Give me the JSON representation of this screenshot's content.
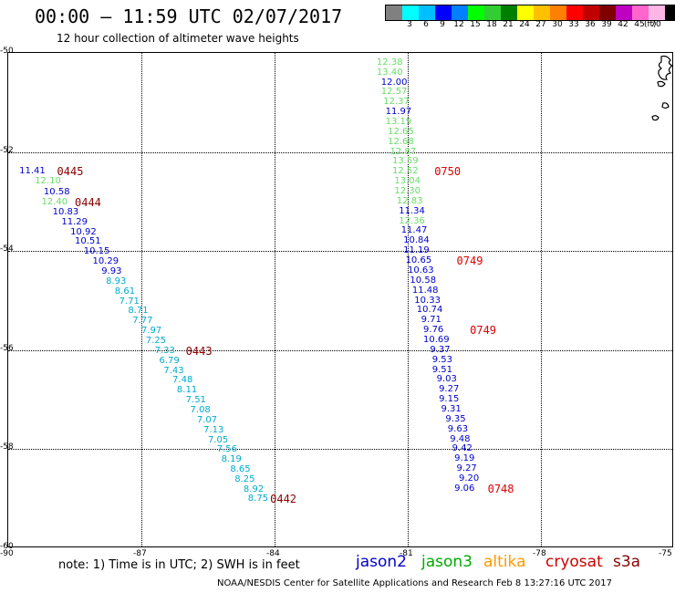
{
  "header": {
    "title": "00:00 – 11:59 UTC 02/07/2017",
    "subtitle": "12 hour collection of altimeter wave heights"
  },
  "colorbar": {
    "unit": "(ft)",
    "colors": [
      "#808080",
      "#00ffff",
      "#00bfff",
      "#0000ff",
      "#0080ff",
      "#00ff00",
      "#32cd32",
      "#008000",
      "#ffff00",
      "#ffc000",
      "#ff8000",
      "#ff0000",
      "#c00000",
      "#800000",
      "#c000c0",
      "#ff66cc",
      "#ffb6e6",
      "#000000"
    ],
    "labels": [
      "",
      "3",
      "6",
      "9",
      "12",
      "15",
      "18",
      "21",
      "24",
      "27",
      "30",
      "33",
      "36",
      "39",
      "42",
      "45",
      "70",
      ""
    ]
  },
  "axes": {
    "lat_labels": [
      "-50",
      "-52",
      "-54",
      "-56",
      "-58",
      "-60"
    ],
    "lon_labels": [
      "-90",
      "-87",
      "-84",
      "-81",
      "-78",
      "-75"
    ],
    "lon_range": [
      -90,
      -75
    ],
    "lat_range": [
      -50,
      -60
    ]
  },
  "track_west": [
    {
      "v": "11.41",
      "c": "#0000cc",
      "lon": -89.75,
      "lat": -52.4
    },
    {
      "v": "12.10",
      "c": "#66dd66",
      "lon": -89.4,
      "lat": -52.6
    },
    {
      "v": "10.58",
      "c": "#0000cc",
      "lon": -89.2,
      "lat": -52.82
    },
    {
      "v": "12.40",
      "c": "#66dd66",
      "lon": -89.25,
      "lat": -53.02
    },
    {
      "v": "10.83",
      "c": "#0000cc",
      "lon": -89.0,
      "lat": -53.22
    },
    {
      "v": "11.29",
      "c": "#0000cc",
      "lon": -88.8,
      "lat": -53.42
    },
    {
      "v": "10.92",
      "c": "#0000cc",
      "lon": -88.6,
      "lat": -53.62
    },
    {
      "v": "10.51",
      "c": "#0000cc",
      "lon": -88.5,
      "lat": -53.82
    },
    {
      "v": "10.15",
      "c": "#0000cc",
      "lon": -88.3,
      "lat": -54.02
    },
    {
      "v": "10.29",
      "c": "#0000cc",
      "lon": -88.1,
      "lat": -54.22
    },
    {
      "v": "9.93",
      "c": "#0000cc",
      "lon": -87.9,
      "lat": -54.42
    },
    {
      "v": "8.93",
      "c": "#00aacc",
      "lon": -87.8,
      "lat": -54.62
    },
    {
      "v": "8.61",
      "c": "#00aacc",
      "lon": -87.6,
      "lat": -54.82
    },
    {
      "v": "7.71",
      "c": "#00aacc",
      "lon": -87.5,
      "lat": -55.02
    },
    {
      "v": "8.71",
      "c": "#00aacc",
      "lon": -87.3,
      "lat": -55.22
    },
    {
      "v": "7.77",
      "c": "#00aacc",
      "lon": -87.2,
      "lat": -55.42
    },
    {
      "v": "7.97",
      "c": "#00aacc",
      "lon": -87.0,
      "lat": -55.62
    },
    {
      "v": "7.25",
      "c": "#00aacc",
      "lon": -86.9,
      "lat": -55.82
    },
    {
      "v": "7.33",
      "c": "#00aacc",
      "lon": -86.7,
      "lat": -56.02
    },
    {
      "v": "6.79",
      "c": "#00aacc",
      "lon": -86.6,
      "lat": -56.22
    },
    {
      "v": "7.43",
      "c": "#00aacc",
      "lon": -86.5,
      "lat": -56.42
    },
    {
      "v": "7.48",
      "c": "#00aacc",
      "lon": -86.3,
      "lat": -56.62
    },
    {
      "v": "8.11",
      "c": "#00aacc",
      "lon": -86.2,
      "lat": -56.82
    },
    {
      "v": "7.51",
      "c": "#00aacc",
      "lon": -86.0,
      "lat": -57.02
    },
    {
      "v": "7.08",
      "c": "#00aacc",
      "lon": -85.9,
      "lat": -57.22
    },
    {
      "v": "7.07",
      "c": "#00aacc",
      "lon": -85.75,
      "lat": -57.42
    },
    {
      "v": "7.13",
      "c": "#00aacc",
      "lon": -85.6,
      "lat": -57.62
    },
    {
      "v": "7.05",
      "c": "#00aacc",
      "lon": -85.5,
      "lat": -57.82
    },
    {
      "v": "7.56",
      "c": "#00aacc",
      "lon": -85.3,
      "lat": -58.02
    },
    {
      "v": "8.19",
      "c": "#00aacc",
      "lon": -85.2,
      "lat": -58.22
    },
    {
      "v": "8.65",
      "c": "#00aacc",
      "lon": -85.0,
      "lat": -58.42
    },
    {
      "v": "8.25",
      "c": "#00aacc",
      "lon": -84.9,
      "lat": -58.62
    },
    {
      "v": "8.92",
      "c": "#00aacc",
      "lon": -84.7,
      "lat": -58.82
    },
    {
      "v": "8.75",
      "c": "#00aacc",
      "lon": -84.6,
      "lat": -59.0
    }
  ],
  "times_west": [
    {
      "t": "0445",
      "lon": -88.9,
      "lat": -52.4
    },
    {
      "t": "0444",
      "lon": -88.5,
      "lat": -53.02
    },
    {
      "t": "0443",
      "lon": -86.0,
      "lat": -56.02
    },
    {
      "t": "0442",
      "lon": -84.1,
      "lat": -59.0
    }
  ],
  "track_east": [
    {
      "v": "12.38",
      "c": "#66dd66",
      "lon": -81.7,
      "lat": -50.2
    },
    {
      "v": "13.40",
      "c": "#66dd66",
      "lon": -81.7,
      "lat": -50.4
    },
    {
      "v": "12.00",
      "c": "#0000cc",
      "lon": -81.6,
      "lat": -50.6
    },
    {
      "v": "12.57",
      "c": "#66dd66",
      "lon": -81.6,
      "lat": -50.8
    },
    {
      "v": "12.37",
      "c": "#66dd66",
      "lon": -81.55,
      "lat": -51.0
    },
    {
      "v": "11.97",
      "c": "#0000cc",
      "lon": -81.5,
      "lat": -51.2
    },
    {
      "v": "13.19",
      "c": "#66dd66",
      "lon": -81.5,
      "lat": -51.4
    },
    {
      "v": "12.65",
      "c": "#66dd66",
      "lon": -81.45,
      "lat": -51.6
    },
    {
      "v": "12.68",
      "c": "#66dd66",
      "lon": -81.45,
      "lat": -51.8
    },
    {
      "v": "12.87",
      "c": "#66dd66",
      "lon": -81.4,
      "lat": -52.0
    },
    {
      "v": "13.59",
      "c": "#66dd66",
      "lon": -81.35,
      "lat": -52.2
    },
    {
      "v": "12.52",
      "c": "#66dd66",
      "lon": -81.35,
      "lat": -52.4
    },
    {
      "v": "13.04",
      "c": "#66dd66",
      "lon": -81.3,
      "lat": -52.6
    },
    {
      "v": "12.30",
      "c": "#66dd66",
      "lon": -81.3,
      "lat": -52.8
    },
    {
      "v": "12.83",
      "c": "#66dd66",
      "lon": -81.25,
      "lat": -53.0
    },
    {
      "v": "11.34",
      "c": "#0000cc",
      "lon": -81.2,
      "lat": -53.2
    },
    {
      "v": "12.36",
      "c": "#66dd66",
      "lon": -81.2,
      "lat": -53.4
    },
    {
      "v": "11.47",
      "c": "#0000cc",
      "lon": -81.15,
      "lat": -53.6
    },
    {
      "v": "10.84",
      "c": "#0000cc",
      "lon": -81.1,
      "lat": -53.8
    },
    {
      "v": "11.19",
      "c": "#0000cc",
      "lon": -81.1,
      "lat": -54.0
    },
    {
      "v": "10.65",
      "c": "#0000cc",
      "lon": -81.05,
      "lat": -54.2
    },
    {
      "v": "10.63",
      "c": "#0000cc",
      "lon": -81.0,
      "lat": -54.4
    },
    {
      "v": "10.58",
      "c": "#0000cc",
      "lon": -80.95,
      "lat": -54.6
    },
    {
      "v": "11.48",
      "c": "#0000cc",
      "lon": -80.9,
      "lat": -54.8
    },
    {
      "v": "10.33",
      "c": "#0000cc",
      "lon": -80.85,
      "lat": -55.0
    },
    {
      "v": "10.74",
      "c": "#0000cc",
      "lon": -80.8,
      "lat": -55.2
    },
    {
      "v": "9.71",
      "c": "#0000cc",
      "lon": -80.7,
      "lat": -55.4
    },
    {
      "v": "9.76",
      "c": "#0000cc",
      "lon": -80.65,
      "lat": -55.6
    },
    {
      "v": "10.69",
      "c": "#0000cc",
      "lon": -80.65,
      "lat": -55.8
    },
    {
      "v": "9.37",
      "c": "#0000cc",
      "lon": -80.5,
      "lat": -56.0
    },
    {
      "v": "9.53",
      "c": "#0000cc",
      "lon": -80.45,
      "lat": -56.2
    },
    {
      "v": "9.51",
      "c": "#0000cc",
      "lon": -80.45,
      "lat": -56.4
    },
    {
      "v": "9.03",
      "c": "#0000cc",
      "lon": -80.35,
      "lat": -56.6
    },
    {
      "v": "9.27",
      "c": "#0000cc",
      "lon": -80.3,
      "lat": -56.8
    },
    {
      "v": "9.15",
      "c": "#0000cc",
      "lon": -80.3,
      "lat": -57.0
    },
    {
      "v": "9.31",
      "c": "#0000cc",
      "lon": -80.25,
      "lat": -57.2
    },
    {
      "v": "9.35",
      "c": "#0000cc",
      "lon": -80.15,
      "lat": -57.4
    },
    {
      "v": "9.63",
      "c": "#0000cc",
      "lon": -80.1,
      "lat": -57.6
    },
    {
      "v": "9.48",
      "c": "#0000cc",
      "lon": -80.05,
      "lat": -57.8
    },
    {
      "v": "9.42",
      "c": "#0000cc",
      "lon": -80.0,
      "lat": -58.0
    },
    {
      "v": "9.19",
      "c": "#0000cc",
      "lon": -79.95,
      "lat": -58.2
    },
    {
      "v": "9.27",
      "c": "#0000cc",
      "lon": -79.9,
      "lat": -58.4
    },
    {
      "v": "9.20",
      "c": "#0000cc",
      "lon": -79.85,
      "lat": -58.6
    },
    {
      "v": "9.06",
      "c": "#0000cc",
      "lon": -79.95,
      "lat": -58.8
    }
  ],
  "times_east": [
    {
      "t": "0750",
      "lon": -80.4,
      "lat": -52.4
    },
    {
      "t": "0749",
      "lon": -79.9,
      "lat": -54.2
    },
    {
      "t": "0749",
      "lon": -79.6,
      "lat": -55.6
    },
    {
      "t": "0748",
      "lon": -79.2,
      "lat": -58.8
    }
  ],
  "note": "note: 1) Time is in UTC; 2) SWH is in feet",
  "legend": [
    {
      "name": "jason2",
      "color": "#0000cc"
    },
    {
      "name": "jason3",
      "color": "#00aa00"
    },
    {
      "name": "altika",
      "color": "#ff9900"
    },
    {
      "name": "cryosat",
      "color": "#cc0000"
    },
    {
      "name": "s3a",
      "color": "#880000"
    }
  ],
  "footer": "NOAA/NESDIS Center for Satellite Applications and Research   Feb  8 13:27:16 UTC 2017"
}
